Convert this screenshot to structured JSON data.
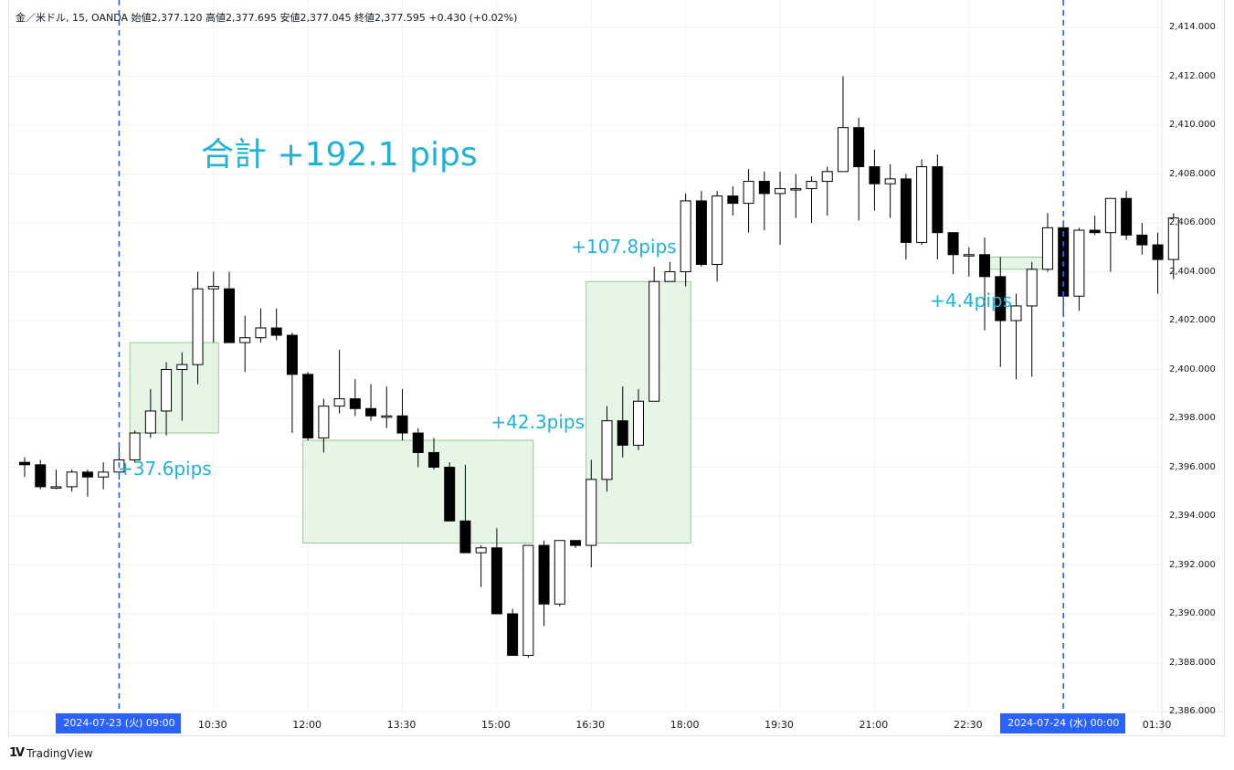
{
  "legend": "金／米ドル, 15, OANDA  始値2,377.120  高値2,377.695  安値2,377.045  終値2,377.595  +0.430 (+0.02%)",
  "brand": {
    "name": "TradingView",
    "icon": "tradingview-logo-icon"
  },
  "colors": {
    "bull_fill": "#ffffff",
    "bear_fill": "#000000",
    "zone_fill": "#e2f3e0",
    "zone_stroke": "#7cc07b",
    "annotation": "#1fb1d6",
    "session_line": "#2962ff",
    "grid": "#f0f3fa"
  },
  "total_label": "合計 +192.1 pips",
  "chart_data": {
    "type": "candlestick",
    "ylim": [
      2386.0,
      2414.5
    ],
    "y_ticks": [
      {
        "v": 2414,
        "label": "2,414.000"
      },
      {
        "v": 2412,
        "label": "2,412.000"
      },
      {
        "v": 2410,
        "label": "2,410.000"
      },
      {
        "v": 2408,
        "label": "2,408.000"
      },
      {
        "v": 2406,
        "label": "2,406.000"
      },
      {
        "v": 2404,
        "label": "2,404.000"
      },
      {
        "v": 2402,
        "label": "2,402.000"
      },
      {
        "v": 2400,
        "label": "2,400.000"
      },
      {
        "v": 2398,
        "label": "2,398.000"
      },
      {
        "v": 2396,
        "label": "2,396.000"
      },
      {
        "v": 2394,
        "label": "2,394.000"
      },
      {
        "v": 2392,
        "label": "2,392.000"
      },
      {
        "v": 2390,
        "label": "2,390.000"
      },
      {
        "v": 2388,
        "label": "2,388.000"
      },
      {
        "v": 2386,
        "label": "2,386.000"
      }
    ],
    "x_ticks": [
      {
        "i": 12,
        "label": "10:30"
      },
      {
        "i": 18,
        "label": "12:00"
      },
      {
        "i": 24,
        "label": "13:30"
      },
      {
        "i": 30,
        "label": "15:00"
      },
      {
        "i": 36,
        "label": "16:30"
      },
      {
        "i": 42,
        "label": "18:00"
      },
      {
        "i": 48,
        "label": "19:30"
      },
      {
        "i": 54,
        "label": "21:00"
      },
      {
        "i": 60,
        "label": "22:30"
      },
      {
        "i": 72,
        "label": "01:30"
      }
    ],
    "x_highlight": [
      {
        "i": 6,
        "label": "2024-07-23 (火)   09:00"
      },
      {
        "i": 66,
        "label": "2024-07-24 (水)   00:00"
      }
    ],
    "session_lines": [
      6,
      66
    ],
    "candles": [
      {
        "o": 2396.2,
        "h": 2396.4,
        "l": 2395.6,
        "c": 2396.1
      },
      {
        "o": 2396.1,
        "h": 2396.3,
        "l": 2395.1,
        "c": 2395.2
      },
      {
        "o": 2395.2,
        "h": 2395.9,
        "l": 2395.1,
        "c": 2395.2
      },
      {
        "o": 2395.2,
        "h": 2395.9,
        "l": 2395.0,
        "c": 2395.8
      },
      {
        "o": 2395.8,
        "h": 2395.9,
        "l": 2394.8,
        "c": 2395.6
      },
      {
        "o": 2395.6,
        "h": 2396.2,
        "l": 2395.1,
        "c": 2395.8
      },
      {
        "o": 2395.8,
        "h": 2396.8,
        "l": 2395.5,
        "c": 2396.3
      },
      {
        "o": 2396.3,
        "h": 2397.5,
        "l": 2396.2,
        "c": 2397.4
      },
      {
        "o": 2397.4,
        "h": 2399.2,
        "l": 2397.2,
        "c": 2398.3
      },
      {
        "o": 2398.3,
        "h": 2400.3,
        "l": 2397.3,
        "c": 2400.0
      },
      {
        "o": 2400.0,
        "h": 2400.7,
        "l": 2397.9,
        "c": 2400.2
      },
      {
        "o": 2400.2,
        "h": 2404.0,
        "l": 2399.4,
        "c": 2403.3
      },
      {
        "o": 2403.3,
        "h": 2404.0,
        "l": 2401.1,
        "c": 2403.4
      },
      {
        "o": 2403.3,
        "h": 2404.0,
        "l": 2401.1,
        "c": 2401.1
      },
      {
        "o": 2401.1,
        "h": 2402.2,
        "l": 2399.9,
        "c": 2401.3
      },
      {
        "o": 2401.3,
        "h": 2402.5,
        "l": 2401.1,
        "c": 2401.7
      },
      {
        "o": 2401.7,
        "h": 2402.5,
        "l": 2401.2,
        "c": 2401.4
      },
      {
        "o": 2401.4,
        "h": 2401.5,
        "l": 2397.4,
        "c": 2399.8
      },
      {
        "o": 2399.8,
        "h": 2399.9,
        "l": 2397.1,
        "c": 2397.2
      },
      {
        "o": 2397.2,
        "h": 2398.8,
        "l": 2396.6,
        "c": 2398.5
      },
      {
        "o": 2398.5,
        "h": 2400.8,
        "l": 2398.2,
        "c": 2398.8
      },
      {
        "o": 2398.8,
        "h": 2399.6,
        "l": 2398.1,
        "c": 2398.4
      },
      {
        "o": 2398.4,
        "h": 2399.4,
        "l": 2397.9,
        "c": 2398.1
      },
      {
        "o": 2398.1,
        "h": 2399.3,
        "l": 2397.6,
        "c": 2398.1
      },
      {
        "o": 2398.1,
        "h": 2399.2,
        "l": 2397.1,
        "c": 2397.4
      },
      {
        "o": 2397.4,
        "h": 2397.6,
        "l": 2396.0,
        "c": 2396.6
      },
      {
        "o": 2396.6,
        "h": 2397.2,
        "l": 2395.9,
        "c": 2396.0
      },
      {
        "o": 2396.0,
        "h": 2396.2,
        "l": 2393.8,
        "c": 2393.8
      },
      {
        "o": 2393.8,
        "h": 2396.1,
        "l": 2392.5,
        "c": 2392.5
      },
      {
        "o": 2392.5,
        "h": 2392.8,
        "l": 2391.1,
        "c": 2392.7
      },
      {
        "o": 2392.7,
        "h": 2393.5,
        "l": 2390.0,
        "c": 2390.0
      },
      {
        "o": 2390.0,
        "h": 2390.2,
        "l": 2388.3,
        "c": 2388.3
      },
      {
        "o": 2388.3,
        "h": 2392.8,
        "l": 2388.2,
        "c": 2392.8
      },
      {
        "o": 2392.8,
        "h": 2393.0,
        "l": 2389.5,
        "c": 2390.4
      },
      {
        "o": 2390.4,
        "h": 2393.0,
        "l": 2390.3,
        "c": 2393.0
      },
      {
        "o": 2393.0,
        "h": 2393.0,
        "l": 2392.7,
        "c": 2392.8
      },
      {
        "o": 2392.8,
        "h": 2396.3,
        "l": 2391.9,
        "c": 2395.5
      },
      {
        "o": 2395.5,
        "h": 2398.5,
        "l": 2395.0,
        "c": 2397.9
      },
      {
        "o": 2397.9,
        "h": 2399.3,
        "l": 2396.4,
        "c": 2396.9
      },
      {
        "o": 2396.9,
        "h": 2399.2,
        "l": 2396.7,
        "c": 2398.7
      },
      {
        "o": 2398.7,
        "h": 2404.2,
        "l": 2398.7,
        "c": 2403.6
      },
      {
        "o": 2403.6,
        "h": 2404.4,
        "l": 2403.6,
        "c": 2404.0
      },
      {
        "o": 2404.0,
        "h": 2407.2,
        "l": 2403.4,
        "c": 2406.9
      },
      {
        "o": 2406.9,
        "h": 2407.3,
        "l": 2404.2,
        "c": 2404.3
      },
      {
        "o": 2404.3,
        "h": 2407.3,
        "l": 2403.6,
        "c": 2407.1
      },
      {
        "o": 2407.1,
        "h": 2407.5,
        "l": 2406.3,
        "c": 2406.8
      },
      {
        "o": 2406.8,
        "h": 2408.2,
        "l": 2405.6,
        "c": 2407.7
      },
      {
        "o": 2407.7,
        "h": 2408.1,
        "l": 2405.7,
        "c": 2407.2
      },
      {
        "o": 2407.2,
        "h": 2408.1,
        "l": 2405.1,
        "c": 2407.4
      },
      {
        "o": 2407.4,
        "h": 2408.0,
        "l": 2406.2,
        "c": 2407.4
      },
      {
        "o": 2407.4,
        "h": 2407.9,
        "l": 2406.0,
        "c": 2407.7
      },
      {
        "o": 2407.7,
        "h": 2408.3,
        "l": 2406.3,
        "c": 2408.1
      },
      {
        "o": 2408.1,
        "h": 2412.0,
        "l": 2408.1,
        "c": 2409.9
      },
      {
        "o": 2409.9,
        "h": 2410.3,
        "l": 2406.1,
        "c": 2408.3
      },
      {
        "o": 2408.3,
        "h": 2409.0,
        "l": 2406.5,
        "c": 2407.6
      },
      {
        "o": 2407.6,
        "h": 2408.4,
        "l": 2406.2,
        "c": 2407.8
      },
      {
        "o": 2407.8,
        "h": 2408.0,
        "l": 2404.5,
        "c": 2405.2
      },
      {
        "o": 2405.2,
        "h": 2408.6,
        "l": 2405.1,
        "c": 2408.3
      },
      {
        "o": 2408.3,
        "h": 2408.8,
        "l": 2404.5,
        "c": 2405.6
      },
      {
        "o": 2405.6,
        "h": 2405.6,
        "l": 2403.9,
        "c": 2404.7
      },
      {
        "o": 2404.7,
        "h": 2405.0,
        "l": 2403.8,
        "c": 2404.7
      },
      {
        "o": 2404.7,
        "h": 2405.4,
        "l": 2401.6,
        "c": 2403.8
      },
      {
        "o": 2403.8,
        "h": 2404.6,
        "l": 2400.1,
        "c": 2402.0
      },
      {
        "o": 2402.0,
        "h": 2403.1,
        "l": 2399.6,
        "c": 2402.6
      },
      {
        "o": 2402.6,
        "h": 2404.4,
        "l": 2399.7,
        "c": 2404.1
      },
      {
        "o": 2404.1,
        "h": 2406.4,
        "l": 2404.0,
        "c": 2405.8
      },
      {
        "o": 2405.8,
        "h": 2406.1,
        "l": 2402.2,
        "c": 2403.0
      },
      {
        "o": 2403.0,
        "h": 2405.8,
        "l": 2402.4,
        "c": 2405.7
      },
      {
        "o": 2405.7,
        "h": 2406.3,
        "l": 2405.5,
        "c": 2405.6
      },
      {
        "o": 2405.6,
        "h": 2406.8,
        "l": 2404.0,
        "c": 2407.0
      },
      {
        "o": 2407.0,
        "h": 2407.3,
        "l": 2405.3,
        "c": 2405.5
      },
      {
        "o": 2405.5,
        "h": 2406.0,
        "l": 2404.7,
        "c": 2405.1
      },
      {
        "o": 2405.1,
        "h": 2405.6,
        "l": 2403.1,
        "c": 2404.5
      },
      {
        "o": 2404.5,
        "h": 2406.4,
        "l": 2403.7,
        "c": 2406.2
      }
    ],
    "zones": [
      {
        "i0": 7,
        "i1": 12,
        "y0": 2397.4,
        "y1": 2401.1,
        "label": "+37.6pips",
        "label_i": 6.3,
        "label_y": 2395.9
      },
      {
        "i0": 18,
        "i1": 32,
        "y0": 2392.9,
        "y1": 2397.1,
        "label": "+42.3pips",
        "label_i": 30.0,
        "label_y": 2397.8
      },
      {
        "i0": 36,
        "i1": 42,
        "y0": 2392.9,
        "y1": 2403.6,
        "label": "+107.8pips",
        "label_i": 35.1,
        "label_y": 2405.0
      },
      {
        "i0": 61,
        "i1": 64.8,
        "y0": 2404.1,
        "y1": 2404.6,
        "label": "+4.4pips",
        "label_i": 57.9,
        "label_y": 2402.8
      }
    ]
  }
}
